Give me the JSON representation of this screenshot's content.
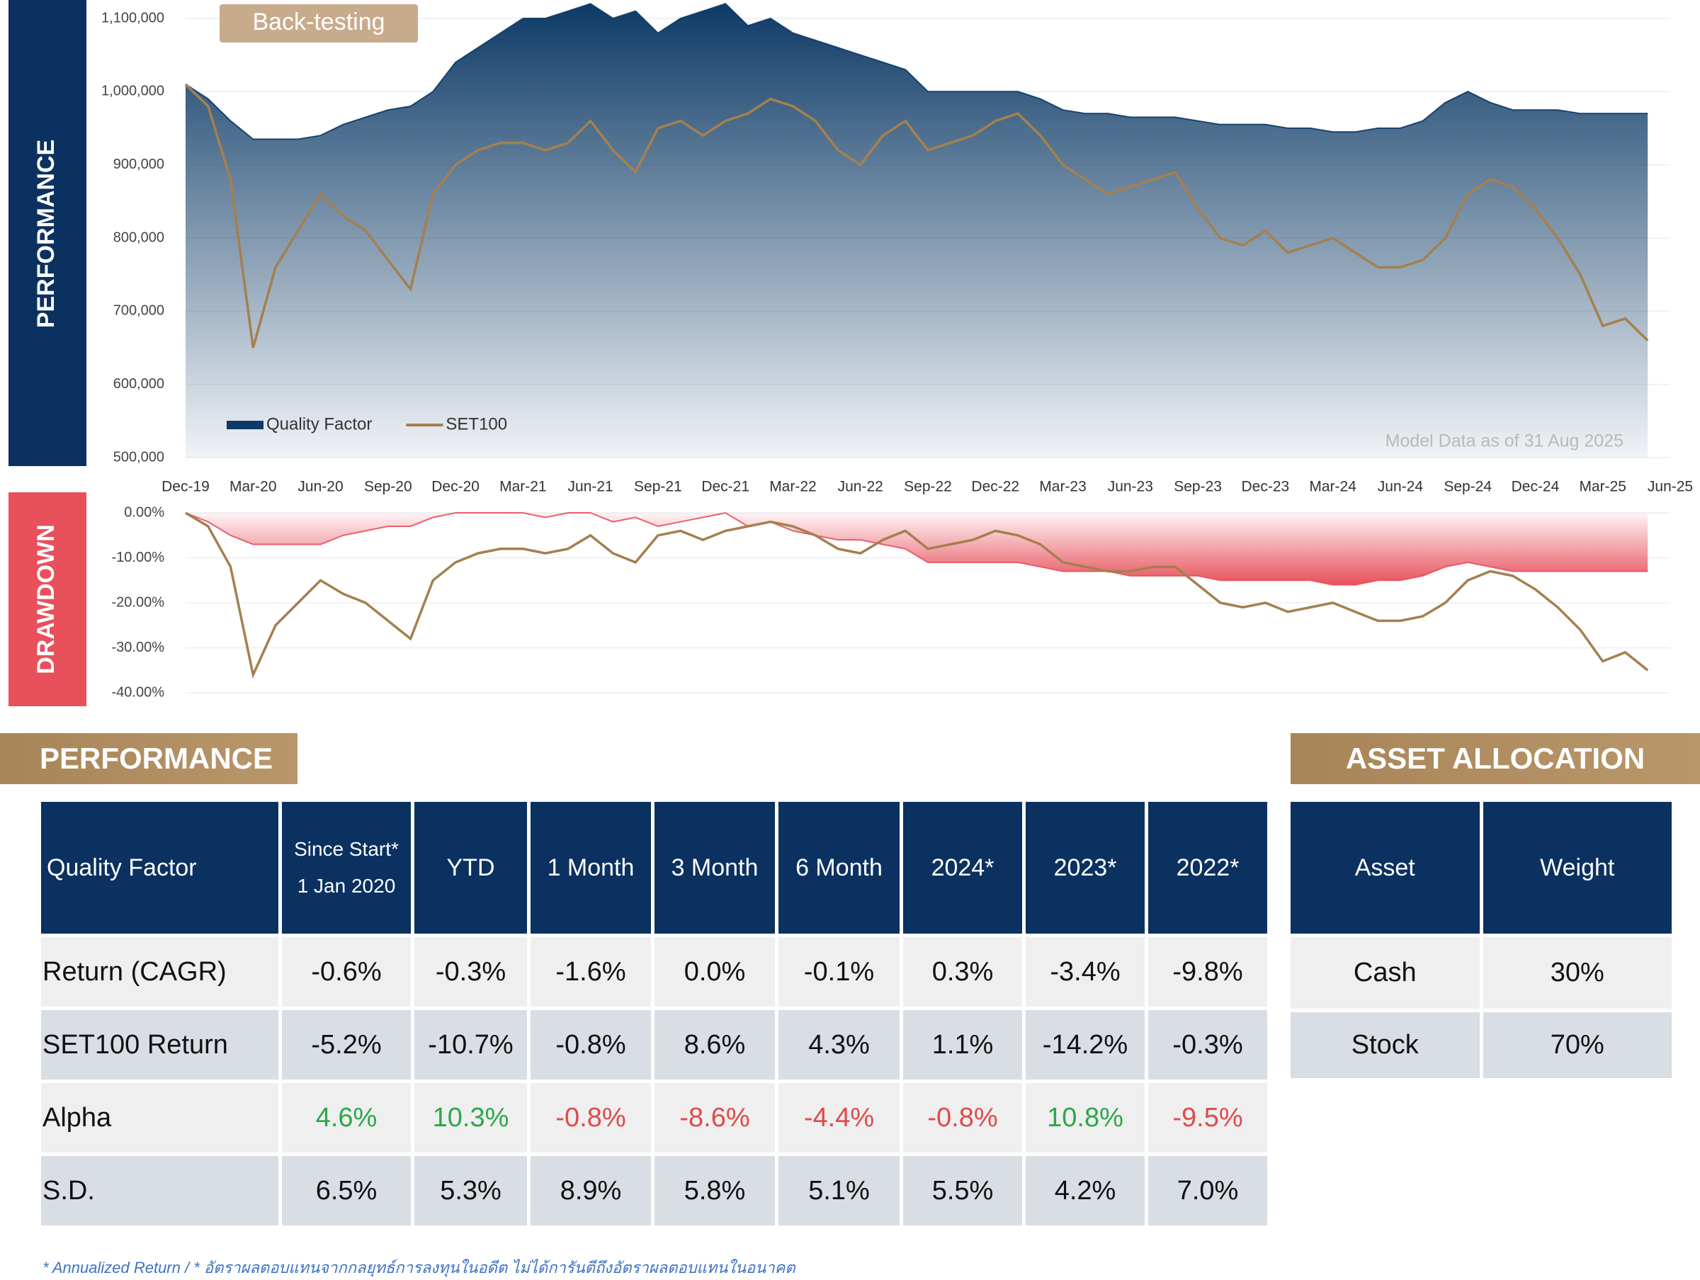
{
  "side_labels": {
    "performance": "PERFORMANCE",
    "drawdown": "DRAWDOWN"
  },
  "badge": "Back-testing",
  "note": "Model Data as of 31 Aug 2025",
  "chart_data": [
    {
      "type": "line",
      "legend": "lower left",
      "grid": true,
      "categories": [
        "Dec-19",
        null,
        null,
        "Mar-20",
        null,
        null,
        "Jun-20",
        null,
        null,
        "Sep-20",
        null,
        null,
        "Dec-20",
        null,
        null,
        "Mar-21",
        null,
        null,
        "Jun-21",
        null,
        null,
        "Sep-21",
        null,
        null,
        "Dec-21",
        null,
        null,
        "Mar-22",
        null,
        null,
        "Jun-22",
        null,
        null,
        "Sep-22",
        null,
        null,
        "Dec-22",
        null,
        null,
        "Mar-23",
        null,
        null,
        "Jun-23",
        null,
        null,
        "Sep-23",
        null,
        null,
        "Dec-23",
        null,
        null,
        "Mar-24",
        null,
        null,
        "Jun-24",
        null,
        null,
        "Sep-24",
        null,
        null,
        "Dec-24",
        null,
        null,
        "Mar-25",
        null,
        null,
        "Jun-25"
      ],
      "ylim": [
        500000,
        1100000
      ],
      "yticks": [
        {
          "value": 500000,
          "label": "500,000"
        },
        {
          "value": 600000,
          "label": "600,000"
        },
        {
          "value": 700000,
          "label": "700,000"
        },
        {
          "value": 800000,
          "label": "800,000"
        },
        {
          "value": 900000,
          "label": "900,000"
        },
        {
          "value": 1000000,
          "label": "1,000,000"
        },
        {
          "value": 1100000,
          "label": "1,100,000"
        }
      ],
      "series": [
        {
          "name": "Quality Factor",
          "style": "area",
          "color": "#0d3a66",
          "values": [
            1010000,
            990000,
            960000,
            935000,
            935000,
            935000,
            940000,
            955000,
            965000,
            975000,
            980000,
            1000000,
            1040000,
            1060000,
            1080000,
            1100000,
            1100000,
            1110000,
            1120000,
            1100000,
            1110000,
            1080000,
            1100000,
            1110000,
            1120000,
            1090000,
            1100000,
            1080000,
            1070000,
            1060000,
            1050000,
            1040000,
            1030000,
            1000000,
            1000000,
            1000000,
            1000000,
            1000000,
            990000,
            975000,
            970000,
            970000,
            965000,
            965000,
            965000,
            960000,
            955000,
            955000,
            955000,
            950000,
            950000,
            945000,
            945000,
            950000,
            950000,
            960000,
            985000,
            1000000,
            985000,
            975000,
            975000,
            975000,
            970000,
            970000,
            970000,
            970000,
            null
          ]
        },
        {
          "name": "SET100",
          "style": "line",
          "color": "#a4804f",
          "values": [
            1010000,
            980000,
            880000,
            650000,
            760000,
            810000,
            860000,
            830000,
            810000,
            770000,
            730000,
            860000,
            900000,
            920000,
            930000,
            930000,
            920000,
            930000,
            960000,
            920000,
            890000,
            950000,
            960000,
            940000,
            960000,
            970000,
            990000,
            980000,
            960000,
            920000,
            900000,
            940000,
            960000,
            920000,
            930000,
            940000,
            960000,
            970000,
            940000,
            900000,
            880000,
            860000,
            870000,
            880000,
            890000,
            840000,
            800000,
            790000,
            810000,
            780000,
            790000,
            800000,
            780000,
            760000,
            760000,
            770000,
            800000,
            860000,
            880000,
            870000,
            840000,
            800000,
            750000,
            680000,
            690000,
            660000,
            null
          ]
        }
      ]
    },
    {
      "type": "line",
      "grid": true,
      "ylim": [
        -40,
        0
      ],
      "yticks": [
        {
          "value": 0,
          "label": "0.00%"
        },
        {
          "value": -10,
          "label": "-10.00%"
        },
        {
          "value": -20,
          "label": "-20.00%"
        },
        {
          "value": -30,
          "label": "-30.00%"
        },
        {
          "value": -40,
          "label": "-40.00%"
        }
      ],
      "series": [
        {
          "style": "area",
          "color": "#e8505b",
          "values": [
            0,
            -2,
            -5,
            -7,
            -7,
            -7,
            -7,
            -5,
            -4,
            -3,
            -3,
            -1,
            0,
            0,
            0,
            0,
            -1,
            0,
            0,
            -2,
            -1,
            -3,
            -2,
            -1,
            0,
            -3,
            -2,
            -4,
            -5,
            -6,
            -6,
            -7,
            -8,
            -11,
            -11,
            -11,
            -11,
            -11,
            -12,
            -13,
            -13,
            -13,
            -14,
            -14,
            -14,
            -14,
            -15,
            -15,
            -15,
            -15,
            -15,
            -16,
            -16,
            -15,
            -15,
            -14,
            -12,
            -11,
            -12,
            -13,
            -13,
            -13,
            -13,
            -13,
            -13,
            -13,
            null
          ]
        },
        {
          "style": "line",
          "color": "#a4804f",
          "values": [
            0,
            -3,
            -12,
            -36,
            -25,
            -20,
            -15,
            -18,
            -20,
            -24,
            -28,
            -15,
            -11,
            -9,
            -8,
            -8,
            -9,
            -8,
            -5,
            -9,
            -11,
            -5,
            -4,
            -6,
            -4,
            -3,
            -2,
            -3,
            -5,
            -8,
            -9,
            -6,
            -4,
            -8,
            -7,
            -6,
            -4,
            -5,
            -7,
            -11,
            -12,
            -13,
            -13,
            -12,
            -12,
            -16,
            -20,
            -21,
            -20,
            -22,
            -21,
            -20,
            -22,
            -24,
            -24,
            -23,
            -20,
            -15,
            -13,
            -14,
            -17,
            -21,
            -26,
            -33,
            -31,
            -35,
            null
          ]
        }
      ]
    }
  ],
  "performance_table": {
    "title": "PERFORMANCE",
    "header": [
      "Quality Factor",
      [
        "Since Start*",
        "1 Jan 2020"
      ],
      "YTD",
      "1 Month",
      "3 Month",
      "6 Month",
      "2024*",
      "2023*",
      "2022*"
    ],
    "rows": [
      [
        "Return (CAGR)",
        "-0.6%",
        "-0.3%",
        "-1.6%",
        "0.0%",
        "-0.1%",
        "0.3%",
        "-3.4%",
        "-9.8%"
      ],
      [
        "SET100 Return",
        "-5.2%",
        "-10.7%",
        "-0.8%",
        "8.6%",
        "4.3%",
        "1.1%",
        "-14.2%",
        "-0.3%"
      ],
      [
        "Alpha",
        "4.6%",
        "10.3%",
        "-0.8%",
        "-8.6%",
        "-4.4%",
        "-0.8%",
        "10.8%",
        "-9.5%"
      ],
      [
        "S.D.",
        "6.5%",
        "5.3%",
        "8.9%",
        "5.8%",
        "5.1%",
        "5.5%",
        "4.2%",
        "7.0%"
      ]
    ]
  },
  "allocation_table": {
    "title": "ASSET ALLOCATION",
    "header": [
      "Asset",
      "Weight"
    ],
    "rows": [
      [
        "Cash",
        "30%"
      ],
      [
        "Stock",
        "70%"
      ]
    ]
  },
  "footnote": "* Annualized Return / * อัตราผลตอบแทนจากกลยุทธ์การลงทุนในอดีต ไม่ได้การันตีถึงอัตราผลตอบแทนในอนาคต"
}
